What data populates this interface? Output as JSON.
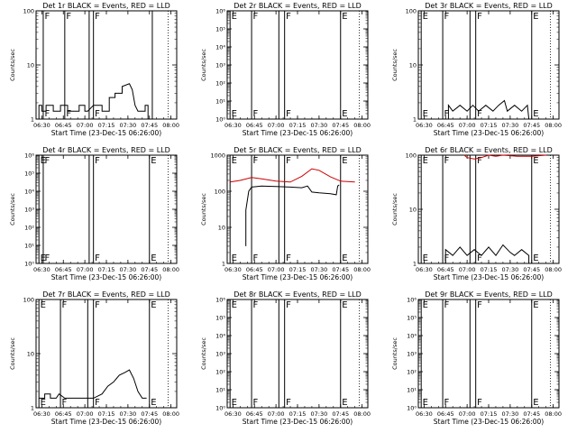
{
  "figure": {
    "background": "#ffffff",
    "axis_color": "#000000"
  },
  "chart_data": [
    {
      "type": "line",
      "title": "Det 1r BLACK = Events, RED = LLD",
      "xlabel": "Start Time (23-Dec-15 06:26:00)",
      "ylabel": "Counts/sec",
      "xlim": [
        "06:26",
        "08:04"
      ],
      "x_ticks": [
        "06:30",
        "06:45",
        "07:00",
        "07:15",
        "07:30",
        "07:45",
        "08:00"
      ],
      "yscale": "log",
      "ylim": [
        1,
        100
      ],
      "y_ticks": [
        "1",
        "10",
        "100"
      ],
      "markers": [
        {
          "x": "06:31",
          "label": "F"
        },
        {
          "x": "06:46",
          "label": "F"
        },
        {
          "x": "07:03",
          "label": ""
        },
        {
          "x": "07:06",
          "label": "F"
        },
        {
          "x": "07:47",
          "label": ""
        }
      ],
      "dotted_x": [
        "07:58"
      ],
      "series": [
        {
          "color": "#000000",
          "points": [
            [
              "06:28",
              1
            ],
            [
              "06:28",
              1.8
            ],
            [
              "06:30",
              1.8
            ],
            [
              "06:30",
              1.4
            ],
            [
              "06:33",
              1.4
            ],
            [
              "06:33",
              1.8
            ],
            [
              "06:38",
              1.8
            ],
            [
              "06:38",
              1.4
            ],
            [
              "06:43",
              1.4
            ],
            [
              "06:43",
              1.8
            ],
            [
              "06:48",
              1.8
            ],
            [
              "06:48",
              1.4
            ],
            [
              "06:56",
              1.4
            ],
            [
              "06:56",
              1.8
            ],
            [
              "07:00",
              1.8
            ],
            [
              "07:00",
              1.4
            ],
            [
              "07:02",
              1.4
            ],
            [
              "07:06",
              1.8
            ],
            [
              "07:12",
              1.8
            ],
            [
              "07:12",
              1.4
            ],
            [
              "07:17",
              1.4
            ],
            [
              "07:17",
              2.5
            ],
            [
              "07:21",
              2.5
            ],
            [
              "07:21",
              3
            ],
            [
              "07:26",
              3
            ],
            [
              "07:26",
              4
            ],
            [
              "07:31",
              4.5
            ],
            [
              "07:33",
              3.5
            ],
            [
              "07:35",
              1.8
            ],
            [
              "07:37",
              1.4
            ],
            [
              "07:42",
              1.4
            ],
            [
              "07:42",
              1.8
            ],
            [
              "07:44",
              1.8
            ],
            [
              "07:44",
              1
            ]
          ]
        }
      ]
    },
    {
      "type": "line",
      "title": "Det 2r BLACK = Events, RED = LLD",
      "xlabel": "Start Time (23-Dec-15 06:26:00)",
      "ylabel": "Counts/sec",
      "xlim": [
        "06:26",
        "08:04"
      ],
      "x_ticks": [
        "06:30",
        "06:45",
        "07:00",
        "07:15",
        "07:30",
        "07:45",
        "08:00"
      ],
      "yscale": "log",
      "ylim": [
        1,
        1000000
      ],
      "y_ticks": [
        "10⁰",
        "10¹",
        "10²",
        "10³",
        "10⁴",
        "10⁵",
        "10⁶"
      ],
      "markers": [
        {
          "x": "06:43",
          "label": "F"
        },
        {
          "x": "07:02",
          "label": ""
        },
        {
          "x": "07:06",
          "label": "F"
        },
        {
          "x": "07:45",
          "label": "E"
        },
        {
          "x": "06:28",
          "label": "E"
        }
      ],
      "dotted_x": [
        "07:58"
      ],
      "series": []
    },
    {
      "type": "line",
      "title": "Det 3r BLACK = Events, RED = LLD",
      "xlabel": "Start Time (23-Dec-15 06:26:00)",
      "ylabel": "Counts/sec",
      "xlim": [
        "06:26",
        "08:04"
      ],
      "x_ticks": [
        "06:30",
        "06:45",
        "07:00",
        "07:15",
        "07:30",
        "07:45",
        "08:00"
      ],
      "yscale": "log",
      "ylim": [
        1,
        100
      ],
      "y_ticks": [
        "1",
        "10",
        "100"
      ],
      "markers": [
        {
          "x": "06:43",
          "label": "F"
        },
        {
          "x": "07:02",
          "label": ""
        },
        {
          "x": "07:06",
          "label": "F"
        },
        {
          "x": "07:45",
          "label": "E"
        },
        {
          "x": "06:28",
          "label": "E"
        }
      ],
      "dotted_x": [
        "07:58"
      ],
      "series": [
        {
          "color": "#000000",
          "points": [
            [
              "06:47",
              1
            ],
            [
              "06:47",
              1.8
            ],
            [
              "06:50",
              1.4
            ],
            [
              "06:55",
              1.8
            ],
            [
              "07:00",
              1.4
            ],
            [
              "07:04",
              1.8
            ],
            [
              "07:08",
              1.4
            ],
            [
              "07:13",
              1.8
            ],
            [
              "07:18",
              1.4
            ],
            [
              "07:22",
              1.8
            ],
            [
              "07:26",
              2.2
            ],
            [
              "07:28",
              1.4
            ],
            [
              "07:33",
              1.8
            ],
            [
              "07:38",
              1.4
            ],
            [
              "07:42",
              1.8
            ],
            [
              "07:43",
              1
            ]
          ]
        }
      ]
    },
    {
      "type": "line",
      "title": "Det 4r BLACK = Events, RED = LLD",
      "xlabel": "Start Time (23-Dec-15 06:26:00)",
      "ylabel": "Counts/sec",
      "xlim": [
        "06:26",
        "08:04"
      ],
      "x_ticks": [
        "06:30",
        "06:45",
        "07:00",
        "07:15",
        "07:30",
        "07:45",
        "08:00"
      ],
      "yscale": "log",
      "ylim": [
        1,
        1000000
      ],
      "y_ticks": [
        "10⁰",
        "10¹",
        "10²",
        "10³",
        "10⁴",
        "10⁵",
        "10⁶"
      ],
      "markers": [
        {
          "x": "06:28",
          "label": "E"
        },
        {
          "x": "06:31",
          "label": "F"
        },
        {
          "x": "07:03",
          "label": ""
        },
        {
          "x": "07:06",
          "label": "F"
        },
        {
          "x": "07:45",
          "label": "E"
        }
      ],
      "dotted_x": [
        "07:58"
      ],
      "series": []
    },
    {
      "type": "line",
      "title": "Det 5r BLACK = Events, RED = LLD",
      "xlabel": "Start Time (23-Dec-15 06:26:00)",
      "ylabel": "Counts/sec",
      "xlim": [
        "06:26",
        "08:04"
      ],
      "x_ticks": [
        "06:30",
        "06:45",
        "07:00",
        "07:15",
        "07:30",
        "07:45",
        "08:00"
      ],
      "yscale": "log",
      "ylim": [
        1,
        1000
      ],
      "y_ticks": [
        "1",
        "10",
        "100",
        "1000"
      ],
      "markers": [
        {
          "x": "06:43",
          "label": "F"
        },
        {
          "x": "07:02",
          "label": ""
        },
        {
          "x": "07:06",
          "label": "F"
        },
        {
          "x": "07:45",
          "label": "E"
        },
        {
          "x": "06:28",
          "label": "E"
        }
      ],
      "dotted_x": [
        "07:58"
      ],
      "series": [
        {
          "color": "#000000",
          "points": [
            [
              "06:39",
              3
            ],
            [
              "06:39",
              30
            ],
            [
              "06:41",
              100
            ],
            [
              "06:43",
              130
            ],
            [
              "06:50",
              140
            ],
            [
              "07:00",
              135
            ],
            [
              "07:10",
              130
            ],
            [
              "07:18",
              125
            ],
            [
              "07:22",
              140
            ],
            [
              "07:25",
              95
            ],
            [
              "07:30",
              90
            ],
            [
              "07:38",
              85
            ],
            [
              "07:42",
              80
            ],
            [
              "07:43",
              140
            ],
            [
              "07:44",
              150
            ]
          ]
        },
        {
          "color": "#cc0000",
          "points": [
            [
              "06:28",
              180
            ],
            [
              "06:35",
              200
            ],
            [
              "06:43",
              240
            ],
            [
              "06:50",
              220
            ],
            [
              "07:00",
              190
            ],
            [
              "07:10",
              180
            ],
            [
              "07:18",
              260
            ],
            [
              "07:25",
              420
            ],
            [
              "07:30",
              380
            ],
            [
              "07:38",
              250
            ],
            [
              "07:45",
              190
            ],
            [
              "07:55",
              180
            ]
          ]
        }
      ]
    },
    {
      "type": "line",
      "title": "Det 6r BLACK = Events, RED = LLD",
      "xlabel": "Start Time (23-Dec-15 06:26:00)",
      "ylabel": "Counts/sec",
      "xlim": [
        "06:26",
        "08:04"
      ],
      "x_ticks": [
        "06:30",
        "06:45",
        "07:00",
        "07:15",
        "07:30",
        "07:45",
        "08:00"
      ],
      "yscale": "log",
      "ylim": [
        1,
        100
      ],
      "y_ticks": [
        "1",
        "10",
        "100"
      ],
      "markers": [
        {
          "x": "06:43",
          "label": "F"
        },
        {
          "x": "07:02",
          "label": ""
        },
        {
          "x": "07:06",
          "label": "F"
        },
        {
          "x": "07:45",
          "label": "E"
        },
        {
          "x": "06:28",
          "label": "E"
        }
      ],
      "dotted_x": [
        "07:58"
      ],
      "series": [
        {
          "color": "#000000",
          "points": [
            [
              "06:45",
              1
            ],
            [
              "06:45",
              1.8
            ],
            [
              "06:50",
              1.4
            ],
            [
              "06:55",
              2
            ],
            [
              "07:00",
              1.4
            ],
            [
              "07:05",
              1.8
            ],
            [
              "07:10",
              1.4
            ],
            [
              "07:15",
              2
            ],
            [
              "07:20",
              1.4
            ],
            [
              "07:25",
              2.2
            ],
            [
              "07:30",
              1.6
            ],
            [
              "07:33",
              1.4
            ],
            [
              "07:38",
              1.8
            ],
            [
              "07:43",
              1.4
            ],
            [
              "07:43",
              1
            ]
          ]
        },
        {
          "color": "#cc0000",
          "points": [
            [
              "06:58",
              100
            ],
            [
              "07:00",
              90
            ],
            [
              "07:05",
              85
            ],
            [
              "07:10",
              90
            ],
            [
              "07:15",
              100
            ],
            [
              "07:20",
              95
            ],
            [
              "07:25",
              100
            ],
            [
              "07:35",
              95
            ],
            [
              "07:45",
              95
            ],
            [
              "07:55",
              100
            ]
          ]
        }
      ]
    },
    {
      "type": "line",
      "title": "Det 7r BLACK = Events, RED = LLD",
      "xlabel": "Start Time (23-Dec-15 06:26:00)",
      "ylabel": "Counts/sec",
      "xlim": [
        "06:26",
        "08:04"
      ],
      "x_ticks": [
        "06:30",
        "06:45",
        "07:00",
        "07:15",
        "07:30",
        "07:45",
        "08:00"
      ],
      "yscale": "log",
      "ylim": [
        1,
        100
      ],
      "y_ticks": [
        "1",
        "10",
        "100"
      ],
      "markers": [
        {
          "x": "06:28",
          "label": "E"
        },
        {
          "x": "06:43",
          "label": "F"
        },
        {
          "x": "07:02",
          "label": ""
        },
        {
          "x": "07:06",
          "label": "F"
        },
        {
          "x": "07:45",
          "label": "E"
        }
      ],
      "dotted_x": [
        "07:58"
      ],
      "series": [
        {
          "color": "#000000",
          "points": [
            [
              "06:28",
              1.5
            ],
            [
              "06:32",
              1.5
            ],
            [
              "06:32",
              1.8
            ],
            [
              "06:36",
              1.8
            ],
            [
              "06:36",
              1.5
            ],
            [
              "06:40",
              1.5
            ],
            [
              "06:42",
              1.8
            ],
            [
              "06:46",
              1.5
            ],
            [
              "07:00",
              1.5
            ],
            [
              "07:06",
              1.5
            ],
            [
              "07:12",
              1.8
            ],
            [
              "07:16",
              2.5
            ],
            [
              "07:20",
              3
            ],
            [
              "07:24",
              4
            ],
            [
              "07:28",
              4.5
            ],
            [
              "07:31",
              5
            ],
            [
              "07:34",
              3.5
            ],
            [
              "07:37",
              2
            ],
            [
              "07:40",
              1.5
            ],
            [
              "07:43",
              1.5
            ]
          ]
        }
      ]
    },
    {
      "type": "line",
      "title": "Det 8r BLACK = Events, RED = LLD",
      "xlabel": "Start Time (23-Dec-15 06:26:00)",
      "ylabel": "Counts/sec",
      "xlim": [
        "06:26",
        "08:04"
      ],
      "x_ticks": [
        "06:30",
        "06:45",
        "07:00",
        "07:15",
        "07:30",
        "07:45",
        "08:00"
      ],
      "yscale": "log",
      "ylim": [
        1,
        1000000
      ],
      "y_ticks": [
        "10⁰",
        "10¹",
        "10²",
        "10³",
        "10⁴",
        "10⁵",
        "10⁶"
      ],
      "markers": [
        {
          "x": "06:43",
          "label": "F"
        },
        {
          "x": "07:02",
          "label": ""
        },
        {
          "x": "07:06",
          "label": "F"
        },
        {
          "x": "07:45",
          "label": "E"
        },
        {
          "x": "06:28",
          "label": "E"
        }
      ],
      "dotted_x": [
        "07:58"
      ],
      "series": []
    },
    {
      "type": "line",
      "title": "Det 9r BLACK = Events, RED = LLD",
      "xlabel": "Start Time (23-Dec-15 06:26:00)",
      "ylabel": "Counts/sec",
      "xlim": [
        "06:26",
        "08:04"
      ],
      "x_ticks": [
        "06:30",
        "06:45",
        "07:00",
        "07:15",
        "07:30",
        "07:45",
        "08:00"
      ],
      "yscale": "log",
      "ylim": [
        1,
        1000000
      ],
      "y_ticks": [
        "10⁰",
        "10¹",
        "10²",
        "10³",
        "10⁴",
        "10⁵",
        "10⁶"
      ],
      "markers": [
        {
          "x": "06:28",
          "label": "E"
        },
        {
          "x": "06:43",
          "label": "F"
        },
        {
          "x": "07:02",
          "label": ""
        },
        {
          "x": "07:06",
          "label": "F"
        },
        {
          "x": "07:45",
          "label": "E"
        }
      ],
      "dotted_x": [
        "07:58"
      ],
      "series": []
    }
  ]
}
